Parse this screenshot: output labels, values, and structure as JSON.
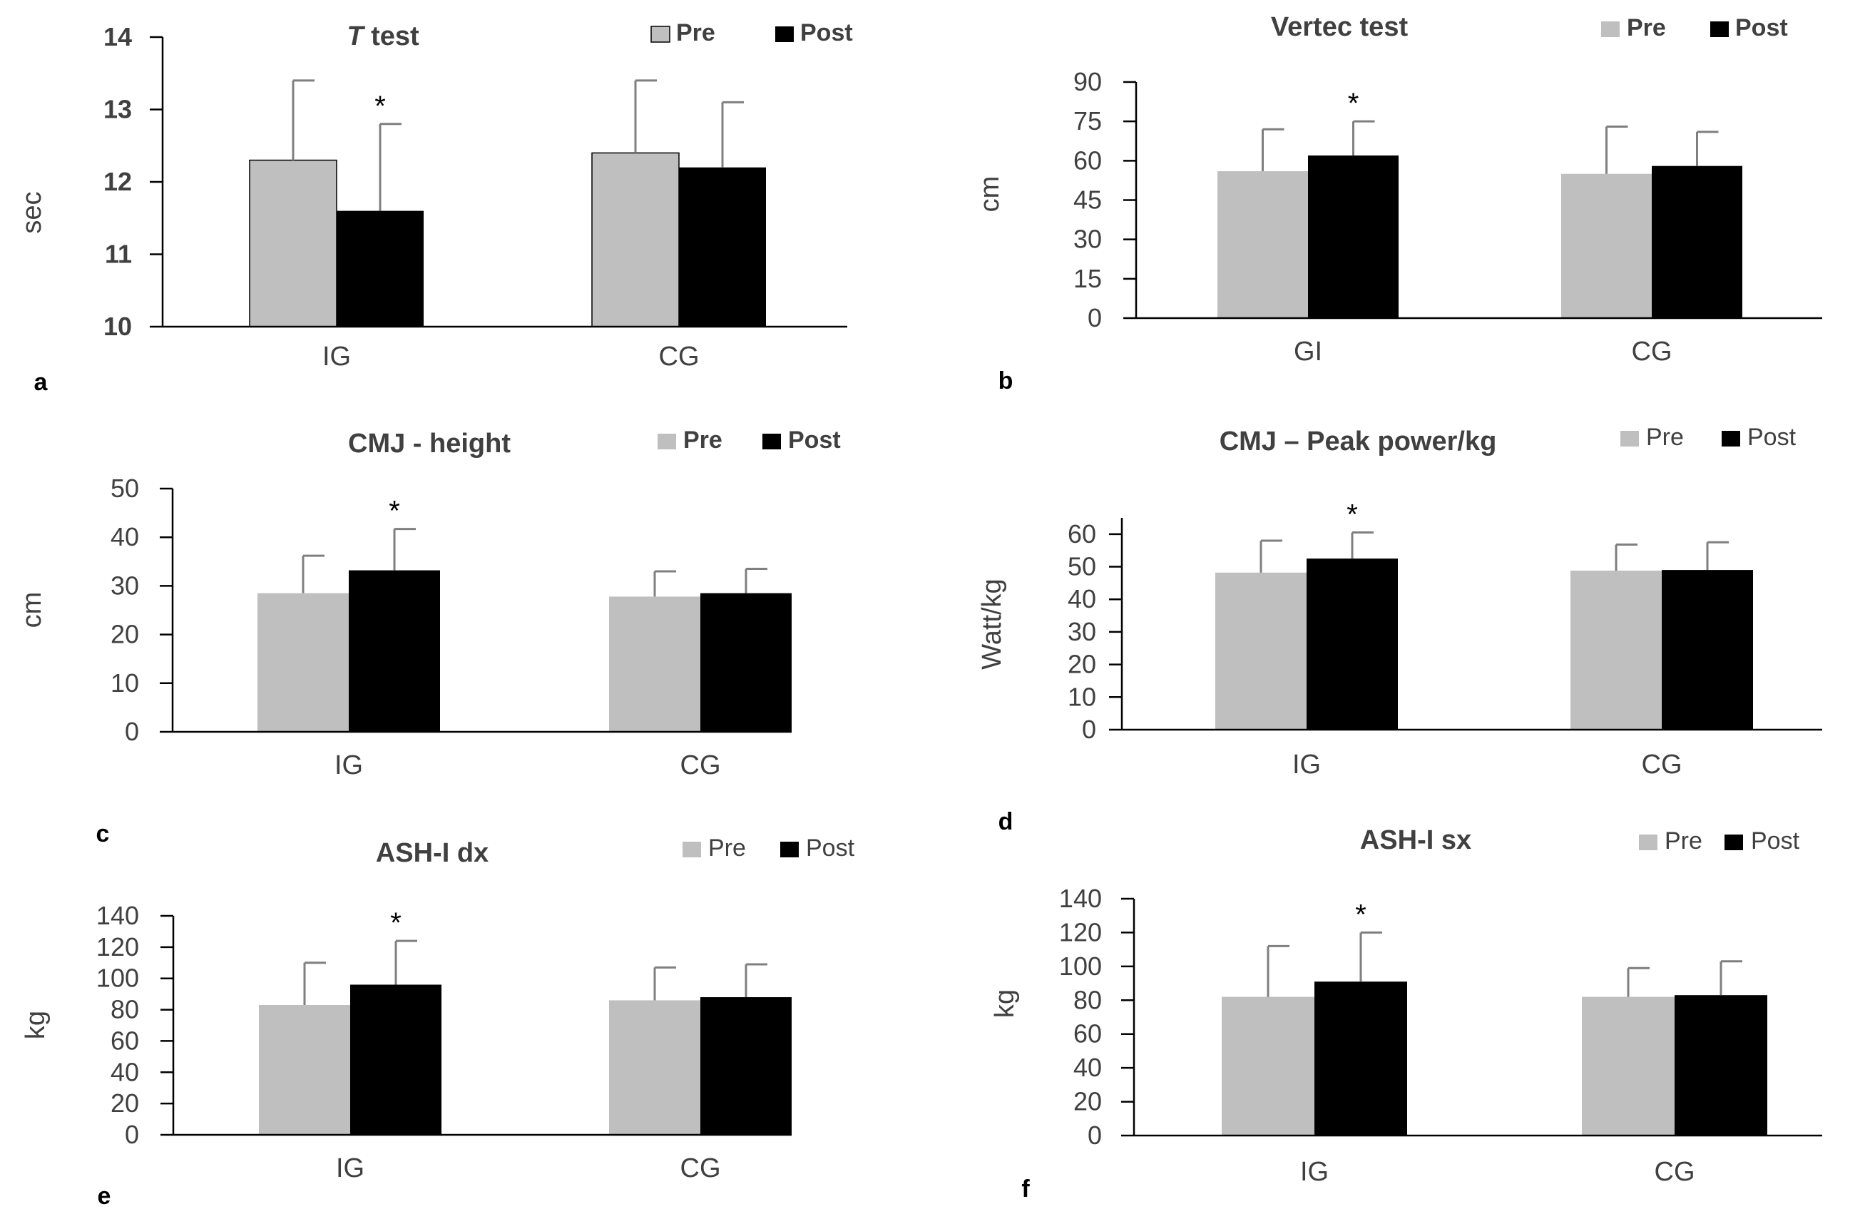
{
  "colors": {
    "pre": "#bfbfbf",
    "post": "#000000",
    "axis": "#000000",
    "error_bar": "#7f7f7f",
    "text": "#404040"
  },
  "chart_data": [
    {
      "panel": "a",
      "type": "bar",
      "title": "T test",
      "title_italic_prefix": "T",
      "ylabel": "sec",
      "ylim": [
        10,
        14
      ],
      "yticks": [
        10,
        11,
        12,
        13,
        14
      ],
      "categories": [
        "IG",
        "CG"
      ],
      "series": [
        {
          "name": "Pre",
          "values": [
            12.3,
            12.4
          ],
          "errors": [
            1.1,
            1.0
          ]
        },
        {
          "name": "Post",
          "values": [
            11.6,
            12.2
          ],
          "errors": [
            1.2,
            0.9
          ]
        }
      ],
      "significance": [
        {
          "category": "IG",
          "series": "Post",
          "mark": "*"
        }
      ],
      "legend": [
        "Pre",
        "Post"
      ],
      "pre_bar_outlined": true
    },
    {
      "panel": "b",
      "type": "bar",
      "title": "Vertec test",
      "ylabel": "cm",
      "ylim": [
        0,
        90
      ],
      "yticks": [
        0,
        15,
        30,
        45,
        60,
        75,
        90
      ],
      "categories": [
        "GI",
        "CG"
      ],
      "series": [
        {
          "name": "Pre",
          "values": [
            56,
            55
          ],
          "errors": [
            16,
            18
          ]
        },
        {
          "name": "Post",
          "values": [
            62,
            58
          ],
          "errors": [
            13,
            13
          ]
        }
      ],
      "significance": [
        {
          "category": "GI",
          "series": "Post",
          "mark": "*"
        }
      ],
      "legend": [
        "Pre",
        "Post"
      ]
    },
    {
      "panel": "c",
      "type": "bar",
      "title": "CMJ - height",
      "ylabel": "cm",
      "ylim": [
        0,
        50
      ],
      "yticks": [
        0,
        10,
        20,
        30,
        40,
        50
      ],
      "categories": [
        "IG",
        "CG"
      ],
      "series": [
        {
          "name": "Pre",
          "values": [
            28.5,
            27.8
          ],
          "errors": [
            7.7,
            5.2
          ]
        },
        {
          "name": "Post",
          "values": [
            33.2,
            28.5
          ],
          "errors": [
            8.5,
            5.0
          ]
        }
      ],
      "significance": [
        {
          "category": "IG",
          "series": "Post",
          "mark": "*"
        }
      ],
      "legend": [
        "Pre",
        "Post"
      ]
    },
    {
      "panel": "d",
      "type": "bar",
      "title": "CMJ – Peak power/kg",
      "ylabel": "Watt/kg",
      "ylim": [
        0,
        65
      ],
      "yticks": [
        0,
        10,
        20,
        30,
        40,
        50,
        60
      ],
      "categories": [
        "IG",
        "CG"
      ],
      "series": [
        {
          "name": "Pre",
          "values": [
            48.2,
            48.8
          ],
          "errors": [
            9.8,
            8.0
          ]
        },
        {
          "name": "Post",
          "values": [
            52.5,
            49.0
          ],
          "errors": [
            8.0,
            8.5
          ]
        }
      ],
      "significance": [
        {
          "category": "IG",
          "series": "Post",
          "mark": "*"
        }
      ],
      "legend": [
        "Pre",
        "Post"
      ]
    },
    {
      "panel": "e",
      "type": "bar",
      "title": "ASH-I dx",
      "ylabel": "kg",
      "ylim": [
        0,
        140
      ],
      "yticks": [
        0,
        20,
        40,
        60,
        80,
        100,
        120,
        140
      ],
      "categories": [
        "IG",
        "CG"
      ],
      "series": [
        {
          "name": "Pre",
          "values": [
            83,
            86
          ],
          "errors": [
            27,
            21
          ]
        },
        {
          "name": "Post",
          "values": [
            96,
            88
          ],
          "errors": [
            28,
            21
          ]
        }
      ],
      "significance": [
        {
          "category": "IG",
          "series": "Post",
          "mark": "*"
        }
      ],
      "legend": [
        "Pre",
        "Post"
      ]
    },
    {
      "panel": "f",
      "type": "bar",
      "title": "ASH-I sx",
      "ylabel": "kg",
      "ylim": [
        0,
        140
      ],
      "yticks": [
        0,
        20,
        40,
        60,
        80,
        100,
        120,
        140
      ],
      "categories": [
        "IG",
        "CG"
      ],
      "series": [
        {
          "name": "Pre",
          "values": [
            82,
            82
          ],
          "errors": [
            30,
            17
          ]
        },
        {
          "name": "Post",
          "values": [
            91,
            83
          ],
          "errors": [
            29,
            20
          ]
        }
      ],
      "significance": [
        {
          "category": "IG",
          "series": "Post",
          "mark": "*"
        }
      ],
      "legend": [
        "Pre",
        "Post"
      ]
    }
  ]
}
